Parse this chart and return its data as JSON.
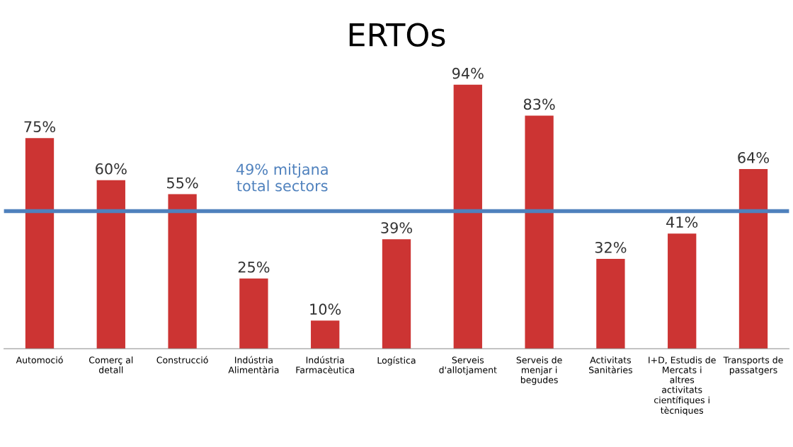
{
  "chart_data": {
    "type": "bar",
    "title": "ERTOs",
    "categories": [
      "Automoció",
      "Comerç al\ndetall",
      "Construcció",
      "Indústria\nAlimentària",
      "Indústria\nFarmacèutica",
      "Logística",
      "Serveis\nd'allotjament",
      "Serveis de\nmenjar i\nbegudes",
      "Activitats\nSanitàries",
      "I+D, Estudis de\nMercats i\naltres\nactivitats\ncientífiques i\ntècniques",
      "Transports de\npassatgers"
    ],
    "values": [
      75,
      60,
      55,
      25,
      10,
      39,
      94,
      83,
      32,
      41,
      64
    ],
    "value_labels": [
      "75%",
      "60%",
      "55%",
      "25%",
      "10%",
      "39%",
      "94%",
      "83%",
      "32%",
      "41%",
      "64%"
    ],
    "color": "#cc3433",
    "ref_lines": [
      {
        "axis": "y",
        "value": 49,
        "label": "49% mitjana\ntotal sectors",
        "color": "#4f81bd",
        "line_style": "solid"
      }
    ],
    "grid": false,
    "legend": false
  }
}
